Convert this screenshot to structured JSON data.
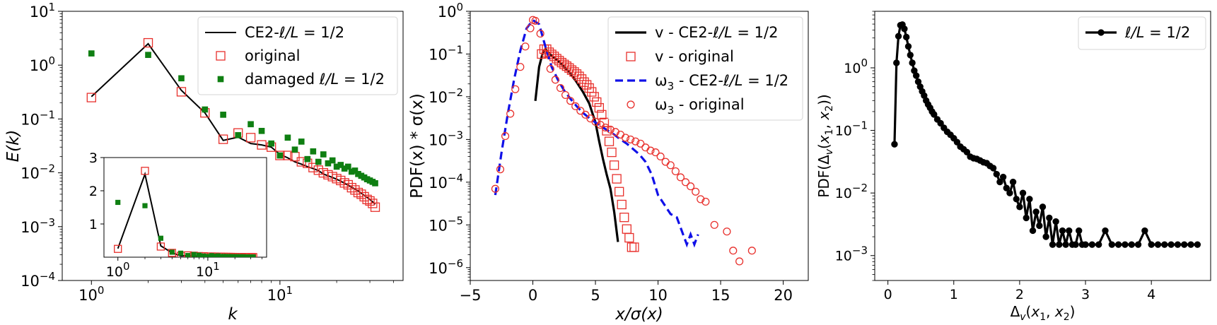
{
  "chart_data": [
    {
      "type": "line",
      "name": "panel-energy-spectrum",
      "xlabel": "k",
      "ylabel": "E(k)",
      "xscale": "log",
      "yscale": "log",
      "xlim": [
        0.7,
        45
      ],
      "ylim": [
        0.0001,
        10
      ],
      "xticks": [
        {
          "v": 1,
          "b": "10",
          "e": "0"
        },
        {
          "v": 10,
          "b": "10",
          "e": "1"
        }
      ],
      "yticks": [
        {
          "v": 10,
          "b": "10",
          "e": "1"
        },
        {
          "v": 1,
          "b": "10",
          "e": "0"
        },
        {
          "v": 0.1,
          "b": "10",
          "e": "−1"
        },
        {
          "v": 0.01,
          "b": "10",
          "e": "−2"
        },
        {
          "v": 0.001,
          "b": "10",
          "e": "−3"
        },
        {
          "v": 0.0001,
          "b": "10",
          "e": "−4"
        }
      ],
      "legend_position": "top-right",
      "series": [
        {
          "name": "CE2-ℓ/L = 1/2",
          "legend": {
            "pre": "CE2-",
            "ital": "ℓ/L",
            "post": " = 1/2"
          },
          "style": "line",
          "color": "#000000",
          "x": [
            1,
            2,
            3,
            4,
            5,
            6,
            7,
            8,
            9,
            10,
            11,
            12,
            13,
            14,
            15,
            16,
            17,
            18,
            19,
            20,
            21,
            22,
            23,
            24,
            25,
            26,
            27,
            28,
            29,
            30,
            31,
            32
          ],
          "y": [
            0.26,
            2.5,
            0.34,
            0.13,
            0.04,
            0.046,
            0.035,
            0.033,
            0.03,
            0.022,
            0.019,
            0.016,
            0.0145,
            0.013,
            0.012,
            0.011,
            0.0095,
            0.0088,
            0.0082,
            0.0076,
            0.007,
            0.0064,
            0.0059,
            0.0054,
            0.005,
            0.0046,
            0.0042,
            0.0038,
            0.0035,
            0.0032,
            0.0029,
            0.0026
          ]
        },
        {
          "name": "original",
          "legend": {
            "pre": "original",
            "ital": "",
            "post": ""
          },
          "style": "open-square",
          "color": "#e8302c",
          "x": [
            1,
            2,
            3,
            4,
            5,
            6,
            7,
            8,
            9,
            10,
            11,
            12,
            13,
            14,
            15,
            16,
            17,
            18,
            19,
            20,
            21,
            22,
            23,
            24,
            25,
            26,
            27,
            28,
            29,
            30,
            31,
            32
          ],
          "y": [
            0.25,
            2.6,
            0.32,
            0.13,
            0.042,
            0.055,
            0.045,
            0.033,
            0.03,
            0.021,
            0.021,
            0.02,
            0.016,
            0.015,
            0.0125,
            0.0112,
            0.01,
            0.0092,
            0.0085,
            0.0078,
            0.0072,
            0.0065,
            0.006,
            0.0053,
            0.0048,
            0.0043,
            0.004,
            0.0036,
            0.0032,
            0.003,
            0.0027,
            0.0023
          ]
        },
        {
          "name": "damaged ℓ/L = 1/2",
          "legend": {
            "pre": "damaged ",
            "ital": "ℓ/L",
            "post": " = 1/2"
          },
          "style": "filled-square",
          "color": "#0f7f12",
          "x": [
            1,
            2,
            3,
            4,
            5,
            6,
            7,
            8,
            9,
            10,
            11,
            12,
            13,
            14,
            15,
            16,
            17,
            18,
            19,
            20,
            21,
            22,
            23,
            24,
            25,
            26,
            27,
            28,
            29,
            30,
            31,
            32
          ],
          "y": [
            1.65,
            1.55,
            0.57,
            0.15,
            0.12,
            0.05,
            0.08,
            0.06,
            0.035,
            0.021,
            0.045,
            0.027,
            0.038,
            0.018,
            0.025,
            0.016,
            0.022,
            0.015,
            0.017,
            0.013,
            0.014,
            0.012,
            0.013,
            0.0105,
            0.011,
            0.0095,
            0.0088,
            0.0082,
            0.0076,
            0.0072,
            0.0068,
            0.0064
          ]
        }
      ],
      "inset": {
        "xscale": "log",
        "yscale": "linear",
        "xlim": [
          0.7,
          45
        ],
        "ylim": [
          0,
          3
        ],
        "xticks": [
          {
            "v": 1,
            "b": "10",
            "e": "0"
          },
          {
            "v": 10,
            "b": "10",
            "e": "1"
          }
        ],
        "yticks": [
          {
            "v": 1,
            "t": "1"
          },
          {
            "v": 2,
            "t": "2"
          },
          {
            "v": 3,
            "t": "3"
          }
        ]
      }
    },
    {
      "type": "line",
      "name": "panel-pdf-normalized",
      "xlabel": "x/σ(x)",
      "ylabel": "PDF(x) * σ(x)",
      "xscale": "linear",
      "yscale": "log",
      "xlim": [
        -5,
        22
      ],
      "ylim": [
        5e-07,
        1
      ],
      "xticks": [
        {
          "v": -5,
          "t": "−5"
        },
        {
          "v": 0,
          "t": "0"
        },
        {
          "v": 5,
          "t": "5"
        },
        {
          "v": 10,
          "t": "10"
        },
        {
          "v": 15,
          "t": "15"
        },
        {
          "v": 20,
          "t": "20"
        }
      ],
      "yticks": [
        {
          "v": 1,
          "b": "10",
          "e": "0"
        },
        {
          "v": 0.1,
          "b": "10",
          "e": "−1"
        },
        {
          "v": 0.01,
          "b": "10",
          "e": "−2"
        },
        {
          "v": 0.001,
          "b": "10",
          "e": "−3"
        },
        {
          "v": 0.0001,
          "b": "10",
          "e": "−4"
        },
        {
          "v": 1e-05,
          "b": "10",
          "e": "−5"
        },
        {
          "v": 1e-06,
          "b": "10",
          "e": "−6"
        }
      ],
      "legend_position": "top-right",
      "series": [
        {
          "name": "v - CE2-ℓ/L = 1/2",
          "legend": {
            "pre": "v - CE2-",
            "ital": "ℓ/L",
            "post": " = 1/2"
          },
          "style": "thick-line",
          "color": "#000000",
          "x": [
            0.2,
            0.5,
            0.8,
            1.0,
            1.5,
            2.0,
            2.5,
            3.0,
            3.5,
            4.0,
            4.5,
            5.0,
            5.3,
            5.6,
            5.9,
            6.2,
            6.5,
            6.8
          ],
          "y": [
            0.008,
            0.05,
            0.11,
            0.13,
            0.09,
            0.07,
            0.05,
            0.035,
            0.022,
            0.013,
            0.007,
            0.0025,
            0.0009,
            0.00035,
            0.00015,
            7e-05,
            2e-05,
            4e-06
          ]
        },
        {
          "name": "v - original",
          "legend": {
            "pre": "v - original",
            "ital": "",
            "post": ""
          },
          "style": "open-square",
          "color": "#e8302c",
          "x": [
            0.7,
            0.9,
            1.1,
            1.3,
            1.5,
            1.7,
            1.9,
            2.1,
            2.3,
            2.5,
            2.7,
            2.9,
            3.1,
            3.3,
            3.5,
            3.7,
            3.9,
            4.1,
            4.3,
            4.5,
            4.7,
            4.9,
            5.1,
            5.3,
            5.5,
            5.7,
            5.9,
            6.1,
            6.3,
            6.5,
            6.7,
            6.9,
            7.1,
            7.3,
            7.5,
            7.7,
            7.9,
            8.1
          ],
          "y": [
            0.1,
            0.13,
            0.13,
            0.11,
            0.098,
            0.088,
            0.078,
            0.07,
            0.063,
            0.057,
            0.052,
            0.047,
            0.042,
            0.038,
            0.034,
            0.03,
            0.026,
            0.022,
            0.019,
            0.016,
            0.013,
            0.01,
            0.0075,
            0.0055,
            0.0038,
            0.0025,
            0.0016,
            0.0009,
            0.0005,
            0.00025,
            0.00012,
            6e-05,
            3e-05,
            1.5e-05,
            8e-06,
            5e-06,
            3e-06,
            3e-06
          ]
        },
        {
          "name": "ω_3 - CE2-ℓ/L = 1/2",
          "legend": {
            "pre": "ω",
            "sub": "3",
            "pre2": " - CE2-",
            "ital": "ℓ/L",
            "post": " = 1/2"
          },
          "style": "dashed-line",
          "color": "#1010e8",
          "x": [
            -3.0,
            -2.5,
            -2.0,
            -1.5,
            -1.0,
            -0.5,
            0.0,
            0.5,
            1.0,
            1.5,
            2.0,
            2.5,
            3.0,
            3.5,
            4.0,
            4.5,
            5.0,
            5.5,
            6.0,
            6.5,
            7.0,
            7.5,
            8.0,
            8.5,
            9.0,
            9.5,
            10.0,
            10.5,
            11.0,
            11.5,
            12.0,
            12.3,
            12.6,
            12.9,
            13.2
          ],
          "y": [
            5e-05,
            0.0005,
            0.004,
            0.025,
            0.12,
            0.4,
            0.62,
            0.5,
            0.15,
            0.05,
            0.025,
            0.014,
            0.009,
            0.006,
            0.0042,
            0.0032,
            0.0025,
            0.002,
            0.0016,
            0.0013,
            0.001,
            0.0008,
            0.0006,
            0.00045,
            0.0003,
            0.00015,
            5e-05,
            3e-05,
            1.8e-05,
            1.5e-05,
            6e-06,
            3.5e-06,
            6e-06,
            3.5e-06,
            6e-06
          ]
        },
        {
          "name": "ω_3 - original",
          "legend": {
            "pre": "ω",
            "sub": "3",
            "pre2": " - original",
            "ital": "",
            "post": ""
          },
          "style": "open-circle",
          "color": "#e8302c",
          "x": [
            -3.0,
            -2.6,
            -2.2,
            -1.8,
            -1.4,
            -1.0,
            -0.6,
            -0.2,
            0.0,
            0.2,
            0.6,
            1.0,
            1.4,
            1.8,
            2.2,
            2.6,
            3.0,
            3.4,
            3.8,
            4.2,
            4.6,
            5.0,
            5.4,
            5.8,
            6.2,
            6.6,
            7.0,
            7.4,
            7.8,
            8.2,
            8.6,
            9.0,
            9.4,
            9.8,
            10.2,
            10.6,
            11.0,
            11.4,
            11.8,
            12.2,
            12.6,
            13.0,
            13.4,
            13.8,
            14.5,
            15.5,
            16.0,
            16.5,
            17.5
          ],
          "y": [
            7e-05,
            0.0002,
            0.0012,
            0.004,
            0.015,
            0.05,
            0.15,
            0.4,
            0.63,
            0.6,
            0.3,
            0.1,
            0.045,
            0.025,
            0.016,
            0.011,
            0.008,
            0.006,
            0.0047,
            0.0038,
            0.0031,
            0.0026,
            0.0022,
            0.0019,
            0.0017,
            0.0015,
            0.0013,
            0.0011,
            0.001,
            0.0009,
            0.0008,
            0.00065,
            0.00055,
            0.0005,
            0.0004,
            0.0003,
            0.00025,
            0.00018,
            0.00013,
            0.0001,
            8e-05,
            6e-05,
            4e-05,
            3.5e-05,
            1e-05,
            7e-06,
            2.5e-06,
            1.4e-06,
            2.5e-06
          ]
        }
      ]
    },
    {
      "type": "line",
      "name": "panel-pdf-delta",
      "xlabel": "Δ_v(x_1, x_2)",
      "ylabel": "PDF(Δ_v(x_1, x_2))",
      "xscale": "linear",
      "yscale": "log",
      "xlim": [
        -0.2,
        4.9
      ],
      "ylim": [
        0.0004,
        8
      ],
      "xticks": [
        {
          "v": 0,
          "t": "0"
        },
        {
          "v": 1,
          "t": "1"
        },
        {
          "v": 2,
          "t": "2"
        },
        {
          "v": 3,
          "t": "3"
        },
        {
          "v": 4,
          "t": "4"
        }
      ],
      "yticks": [
        {
          "v": 1,
          "b": "10",
          "e": "0"
        },
        {
          "v": 0.1,
          "b": "10",
          "e": "−1"
        },
        {
          "v": 0.01,
          "b": "10",
          "e": "−2"
        },
        {
          "v": 0.001,
          "b": "10",
          "e": "−3"
        }
      ],
      "legend_position": "top-right",
      "series": [
        {
          "name": "ℓ/L = 1/2",
          "legend": {
            "pre": "",
            "ital": "ℓ/L",
            "post": " = 1/2"
          },
          "style": "line-dot",
          "color": "#000000",
          "x": [
            0.1,
            0.13,
            0.16,
            0.19,
            0.22,
            0.25,
            0.28,
            0.31,
            0.34,
            0.37,
            0.4,
            0.43,
            0.46,
            0.49,
            0.52,
            0.55,
            0.58,
            0.61,
            0.64,
            0.67,
            0.7,
            0.75,
            0.8,
            0.85,
            0.9,
            0.95,
            1.0,
            1.05,
            1.1,
            1.15,
            1.2,
            1.25,
            1.3,
            1.35,
            1.4,
            1.45,
            1.5,
            1.55,
            1.6,
            1.65,
            1.7,
            1.75,
            1.8,
            1.85,
            1.9,
            1.95,
            2.0,
            2.05,
            2.1,
            2.15,
            2.2,
            2.25,
            2.3,
            2.35,
            2.4,
            2.45,
            2.5,
            2.55,
            2.6,
            2.65,
            2.7,
            2.75,
            2.8,
            2.85,
            2.9,
            2.95,
            3.0,
            3.1,
            3.2,
            3.3,
            3.4,
            3.5,
            3.6,
            3.7,
            3.8,
            3.9,
            4.0,
            4.1,
            4.2,
            4.3,
            4.4,
            4.5,
            4.6,
            4.7
          ],
          "y": [
            0.06,
            1.2,
            3.2,
            4.8,
            4.9,
            4.2,
            3.1,
            2.2,
            1.6,
            1.2,
            0.9,
            0.75,
            0.6,
            0.5,
            0.42,
            0.36,
            0.3,
            0.26,
            0.23,
            0.2,
            0.18,
            0.15,
            0.13,
            0.11,
            0.095,
            0.085,
            0.075,
            0.065,
            0.055,
            0.05,
            0.045,
            0.038,
            0.036,
            0.035,
            0.033,
            0.031,
            0.03,
            0.027,
            0.025,
            0.02,
            0.015,
            0.018,
            0.012,
            0.01,
            0.015,
            0.008,
            0.006,
            0.01,
            0.004,
            0.008,
            0.0025,
            0.005,
            0.003,
            0.006,
            0.002,
            0.004,
            0.0015,
            0.0035,
            0.0015,
            0.0025,
            0.0015,
            0.0025,
            0.0015,
            0.0015,
            0.0025,
            0.0015,
            0.0015,
            0.0015,
            0.0015,
            0.0025,
            0.0015,
            0.0015,
            0.0015,
            0.0015,
            0.0015,
            0.0025,
            0.0015,
            0.0015,
            0.0015,
            0.0015,
            0.0015,
            0.0015,
            0.0015,
            0.0015
          ]
        }
      ]
    }
  ]
}
